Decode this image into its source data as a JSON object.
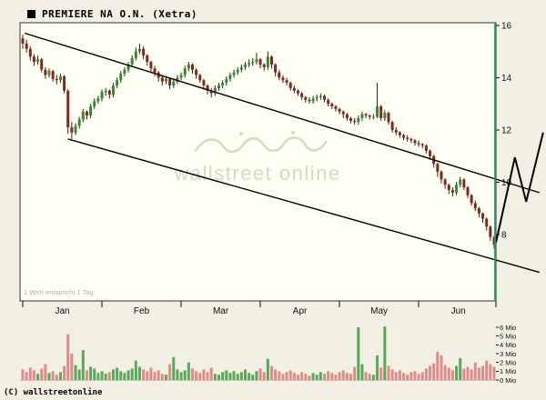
{
  "header": {
    "title": "PREMIERE NA O.N. (Xetra)"
  },
  "footer": {
    "copyright": "(C) wallstreetonline"
  },
  "chart_data": {
    "type": "candlestick",
    "title": "PREMIERE NA O.N. (Xetra)",
    "note": "1 Wert entspricht 1 Tag",
    "watermark": "wallstreet online",
    "months": [
      "Jan",
      "Feb",
      "Mar",
      "Apr",
      "May",
      "Jun"
    ],
    "days_per_month": 21,
    "price_axis": {
      "side": "right",
      "ticks": [
        16,
        14,
        12,
        10,
        8
      ],
      "range": [
        5.5,
        16.1
      ]
    },
    "volume_axis": {
      "ticks": [
        "6 Mio",
        "5 Mio",
        "4 Mio",
        "3 Mio",
        "2 Mio",
        "1 Mio",
        "0 Mio"
      ],
      "range_mio": [
        0,
        6
      ]
    },
    "columns": [
      "open",
      "high",
      "low",
      "close",
      "volume_mio"
    ],
    "candles": [
      [
        15.5,
        15.65,
        15.1,
        15.3,
        1.2
      ],
      [
        15.3,
        15.45,
        14.95,
        15.1,
        0.9
      ],
      [
        15.1,
        15.2,
        14.65,
        14.8,
        1.4
      ],
      [
        14.8,
        14.9,
        14.45,
        14.6,
        1.1
      ],
      [
        14.6,
        14.85,
        14.5,
        14.7,
        0.7
      ],
      [
        14.7,
        14.75,
        14.2,
        14.3,
        1.3
      ],
      [
        14.3,
        14.4,
        13.95,
        14.1,
        1.8
      ],
      [
        14.1,
        14.35,
        14.0,
        14.25,
        0.8
      ],
      [
        14.25,
        14.3,
        13.85,
        13.95,
        1.0
      ],
      [
        13.95,
        14.1,
        13.75,
        13.9,
        0.6
      ],
      [
        13.9,
        14.15,
        13.8,
        14.05,
        0.9
      ],
      [
        14.05,
        14.1,
        13.4,
        13.5,
        1.6
      ],
      [
        13.5,
        13.55,
        11.85,
        12.1,
        5.2
      ],
      [
        12.1,
        12.3,
        11.65,
        11.9,
        3.0
      ],
      [
        11.9,
        12.25,
        11.8,
        12.15,
        1.7
      ],
      [
        12.15,
        12.5,
        12.05,
        12.4,
        1.2
      ],
      [
        12.4,
        12.8,
        12.3,
        12.7,
        3.4
      ],
      [
        12.7,
        12.75,
        12.4,
        12.55,
        1.1
      ],
      [
        12.55,
        13.0,
        12.45,
        12.9,
        1.5
      ],
      [
        12.9,
        13.2,
        12.8,
        13.1,
        1.3
      ],
      [
        13.1,
        13.3,
        13.0,
        13.2,
        0.8
      ],
      [
        13.2,
        13.55,
        13.1,
        13.45,
        1.0
      ],
      [
        13.45,
        13.6,
        13.3,
        13.5,
        0.7
      ],
      [
        13.5,
        13.55,
        13.2,
        13.35,
        0.9
      ],
      [
        13.35,
        13.8,
        13.25,
        13.7,
        1.2
      ],
      [
        13.7,
        14.0,
        13.6,
        13.9,
        1.4
      ],
      [
        13.9,
        14.25,
        13.8,
        14.15,
        1.0
      ],
      [
        14.15,
        14.4,
        14.05,
        14.3,
        0.8
      ],
      [
        14.3,
        14.6,
        14.2,
        14.5,
        1.1
      ],
      [
        14.5,
        14.85,
        14.4,
        14.75,
        1.3
      ],
      [
        14.75,
        15.15,
        14.65,
        15.0,
        2.2
      ],
      [
        15.0,
        15.3,
        14.9,
        15.1,
        1.5
      ],
      [
        15.1,
        15.2,
        14.7,
        14.85,
        1.2
      ],
      [
        14.85,
        14.9,
        14.45,
        14.6,
        1.0
      ],
      [
        14.6,
        14.65,
        14.2,
        14.35,
        1.4
      ],
      [
        14.35,
        14.45,
        14.05,
        14.2,
        0.9
      ],
      [
        14.2,
        14.25,
        13.85,
        14.0,
        1.1
      ],
      [
        14.0,
        14.1,
        13.7,
        13.85,
        0.7
      ],
      [
        13.85,
        14.05,
        13.75,
        13.95,
        0.6
      ],
      [
        13.95,
        14.0,
        13.55,
        13.7,
        1.8
      ],
      [
        13.7,
        13.95,
        13.6,
        13.85,
        2.6
      ],
      [
        13.85,
        14.1,
        13.75,
        14.0,
        1.2
      ],
      [
        14.0,
        14.2,
        13.9,
        14.1,
        0.9
      ],
      [
        14.1,
        14.45,
        14.0,
        14.35,
        1.1
      ],
      [
        14.35,
        14.6,
        14.25,
        14.5,
        2.0
      ],
      [
        14.5,
        14.55,
        14.15,
        14.3,
        1.3
      ],
      [
        14.3,
        14.35,
        13.95,
        14.1,
        1.0
      ],
      [
        14.1,
        14.15,
        13.8,
        13.9,
        0.8
      ],
      [
        13.9,
        13.95,
        13.55,
        13.7,
        1.2
      ],
      [
        13.7,
        13.75,
        13.35,
        13.5,
        0.9
      ],
      [
        13.5,
        13.6,
        13.25,
        13.4,
        1.4
      ],
      [
        13.4,
        13.7,
        13.3,
        13.6,
        0.7
      ],
      [
        13.6,
        13.8,
        13.5,
        13.7,
        0.6
      ],
      [
        13.7,
        13.9,
        13.6,
        13.8,
        0.9
      ],
      [
        13.8,
        14.05,
        13.7,
        13.95,
        1.1
      ],
      [
        13.95,
        14.2,
        13.85,
        14.1,
        0.8
      ],
      [
        14.1,
        14.3,
        14.0,
        14.2,
        1.0
      ],
      [
        14.2,
        14.4,
        14.1,
        14.3,
        0.7
      ],
      [
        14.3,
        14.5,
        14.2,
        14.4,
        0.9
      ],
      [
        14.4,
        14.6,
        14.3,
        14.5,
        1.2
      ],
      [
        14.5,
        14.7,
        14.4,
        14.55,
        0.8
      ],
      [
        14.55,
        14.75,
        14.45,
        14.6,
        0.6
      ],
      [
        14.6,
        14.95,
        14.5,
        14.7,
        1.0
      ],
      [
        14.7,
        14.75,
        14.35,
        14.5,
        1.3
      ],
      [
        14.5,
        14.55,
        14.25,
        14.4,
        0.9
      ],
      [
        14.4,
        15.0,
        14.3,
        14.8,
        2.4
      ],
      [
        14.8,
        14.85,
        14.35,
        14.5,
        1.6
      ],
      [
        14.5,
        14.55,
        14.05,
        14.2,
        1.2
      ],
      [
        14.2,
        14.3,
        13.9,
        14.0,
        1.0
      ],
      [
        14.0,
        14.1,
        13.8,
        13.9,
        0.7
      ],
      [
        13.9,
        14.0,
        13.7,
        13.8,
        0.9
      ],
      [
        13.8,
        13.85,
        13.5,
        13.6,
        1.1
      ],
      [
        13.6,
        13.7,
        13.4,
        13.5,
        0.8
      ],
      [
        13.5,
        13.55,
        13.3,
        13.4,
        0.6
      ],
      [
        13.4,
        13.45,
        13.15,
        13.25,
        0.9
      ],
      [
        13.25,
        13.3,
        13.05,
        13.15,
        0.7
      ],
      [
        13.15,
        13.25,
        13.0,
        13.1,
        0.5
      ],
      [
        13.1,
        13.3,
        13.0,
        13.2,
        0.8
      ],
      [
        13.2,
        13.35,
        13.1,
        13.25,
        0.6
      ],
      [
        13.25,
        13.4,
        13.15,
        13.3,
        0.9
      ],
      [
        13.3,
        13.35,
        13.05,
        13.15,
        0.7
      ],
      [
        13.15,
        13.2,
        12.9,
        13.0,
        1.0
      ],
      [
        13.0,
        13.05,
        12.8,
        12.9,
        0.8
      ],
      [
        12.9,
        12.95,
        12.7,
        12.8,
        0.6
      ],
      [
        12.8,
        12.85,
        12.6,
        12.7,
        0.9
      ],
      [
        12.7,
        12.75,
        12.45,
        12.6,
        1.1
      ],
      [
        12.6,
        12.65,
        12.35,
        12.45,
        0.8
      ],
      [
        12.45,
        12.5,
        12.25,
        12.35,
        0.7
      ],
      [
        12.35,
        12.45,
        12.2,
        12.3,
        1.5
      ],
      [
        12.3,
        12.55,
        12.2,
        12.45,
        6.0
      ],
      [
        12.45,
        12.7,
        12.35,
        12.6,
        1.8
      ],
      [
        12.6,
        12.65,
        12.45,
        12.55,
        0.9
      ],
      [
        12.55,
        12.6,
        12.4,
        12.5,
        0.7
      ],
      [
        12.5,
        12.6,
        12.4,
        12.5,
        0.6
      ],
      [
        12.5,
        13.8,
        12.45,
        12.9,
        2.8
      ],
      [
        12.9,
        12.95,
        12.35,
        12.45,
        1.4
      ],
      [
        12.45,
        12.75,
        12.35,
        12.65,
        6.1
      ],
      [
        12.65,
        12.7,
        12.2,
        12.3,
        1.6
      ],
      [
        12.3,
        12.35,
        11.9,
        12.0,
        1.2
      ],
      [
        12.0,
        12.1,
        11.8,
        11.9,
        0.9
      ],
      [
        11.9,
        11.95,
        11.7,
        11.8,
        1.1
      ],
      [
        11.8,
        11.85,
        11.6,
        11.7,
        0.8
      ],
      [
        11.7,
        11.8,
        11.55,
        11.65,
        0.6
      ],
      [
        11.65,
        11.7,
        11.5,
        11.6,
        0.9
      ],
      [
        11.6,
        11.65,
        11.4,
        11.5,
        1.0
      ],
      [
        11.5,
        11.6,
        11.35,
        11.45,
        0.7
      ],
      [
        11.45,
        11.5,
        11.3,
        11.4,
        0.9
      ],
      [
        11.4,
        11.45,
        11.1,
        11.2,
        1.3
      ],
      [
        11.2,
        11.25,
        10.85,
        11.0,
        1.6
      ],
      [
        11.0,
        11.05,
        10.55,
        10.7,
        1.9
      ],
      [
        10.7,
        10.75,
        10.2,
        10.4,
        3.2
      ],
      [
        10.4,
        10.45,
        9.95,
        10.1,
        2.8
      ],
      [
        10.1,
        10.15,
        9.75,
        9.9,
        1.7
      ],
      [
        9.9,
        9.95,
        9.55,
        9.7,
        1.4
      ],
      [
        9.7,
        9.8,
        9.45,
        9.6,
        1.1
      ],
      [
        9.6,
        10.0,
        9.5,
        9.9,
        1.6
      ],
      [
        9.9,
        10.2,
        9.8,
        10.1,
        2.5
      ],
      [
        10.1,
        10.15,
        9.7,
        9.8,
        1.3
      ],
      [
        9.8,
        9.85,
        9.4,
        9.5,
        1.5
      ],
      [
        9.5,
        9.55,
        9.1,
        9.2,
        1.2
      ],
      [
        9.2,
        9.3,
        8.9,
        9.0,
        2.0
      ],
      [
        9.0,
        9.05,
        8.65,
        8.8,
        1.4
      ],
      [
        8.8,
        8.85,
        8.45,
        8.6,
        1.6
      ],
      [
        8.6,
        8.65,
        8.15,
        8.3,
        2.2
      ],
      [
        8.3,
        8.35,
        7.75,
        7.9,
        1.8
      ],
      [
        7.9,
        7.95,
        7.45,
        7.6,
        1.5
      ]
    ],
    "trendlines": [
      {
        "from_day": 0.5,
        "from_price": 15.7,
        "to_day": 137,
        "to_price": 9.6
      },
      {
        "from_day": 12,
        "from_price": 11.65,
        "to_day": 137,
        "to_price": 6.55
      }
    ],
    "projection_zigzag": [
      [
        125.5,
        7.7
      ],
      [
        130.5,
        10.95
      ],
      [
        133.5,
        9.25
      ],
      [
        138,
        11.9
      ]
    ],
    "colors": {
      "up": "#2f8f2f",
      "down": "#8a241c",
      "wick": "#262626",
      "vol_up": "#5aa85a",
      "vol_down": "#e08a8a",
      "trendline": "#000000",
      "axis_line_green": "#18a06b",
      "watermark": "#d9d8c5",
      "note_text": "#b3b3a1",
      "panel_bg": "#fffef2",
      "page_bg": "#f1f0e2",
      "border": "#333333",
      "text": "#111111"
    },
    "layout_hints": {
      "grid": false,
      "legend": "none",
      "price_axis_side": "right"
    }
  }
}
